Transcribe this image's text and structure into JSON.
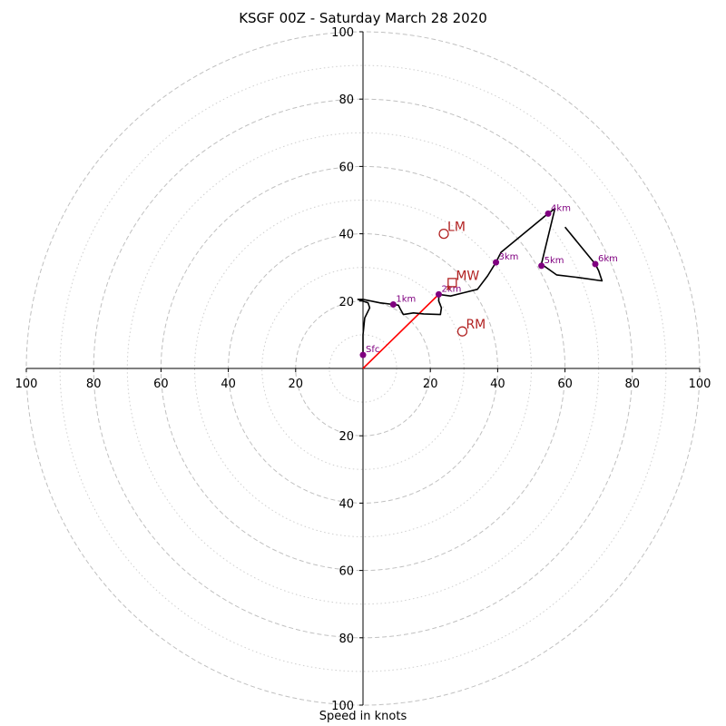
{
  "chart_data": {
    "type": "hodograph",
    "title": "KSGF 00Z - Saturday March 28 2020",
    "xlabel": "Speed in knots",
    "range": 100,
    "ring_major": [
      20,
      40,
      60,
      80,
      100
    ],
    "ring_minor": [
      10,
      30,
      50,
      70,
      90
    ],
    "tick_labels": [
      "20",
      "40",
      "60",
      "80",
      "100"
    ],
    "grid": true,
    "colors": {
      "trace": "#000000",
      "height_marker": "#800080",
      "storm": "#b22222",
      "shear_vector": "#ff0000",
      "grid": "#c0c0c0"
    },
    "trace": [
      [
        0,
        4
      ],
      [
        0,
        10
      ],
      [
        0.5,
        15
      ],
      [
        2,
        18
      ],
      [
        1.5,
        19.5
      ],
      [
        -1.5,
        20.5
      ],
      [
        0,
        20.5
      ],
      [
        5,
        19.5
      ],
      [
        9,
        19
      ],
      [
        10.5,
        18.8
      ],
      [
        11,
        17.8
      ],
      [
        12,
        16
      ],
      [
        15,
        16.5
      ],
      [
        18,
        16.2
      ],
      [
        23,
        16
      ],
      [
        23.3,
        18
      ],
      [
        22.5,
        20
      ],
      [
        22.5,
        22
      ],
      [
        26,
        21.5
      ],
      [
        30,
        22.5
      ],
      [
        34,
        23.5
      ],
      [
        37,
        27.5
      ],
      [
        39.5,
        31.5
      ],
      [
        41,
        34.5
      ],
      [
        55,
        46
      ],
      [
        57,
        47.5
      ],
      [
        53,
        31
      ],
      [
        57.5,
        27.8
      ],
      [
        64,
        27
      ],
      [
        71,
        26
      ],
      [
        70,
        29
      ],
      [
        69,
        31
      ],
      [
        60,
        42
      ]
    ],
    "height_markers": [
      {
        "label": "Sfc",
        "u": 0,
        "v": 4
      },
      {
        "label": "1km",
        "u": 9,
        "v": 19
      },
      {
        "label": "2km",
        "u": 22.5,
        "v": 22
      },
      {
        "label": "3km",
        "u": 39.5,
        "v": 31.5
      },
      {
        "label": "4km",
        "u": 55,
        "v": 46
      },
      {
        "label": "5km",
        "u": 53,
        "v": 30.5
      },
      {
        "label": "6km",
        "u": 69,
        "v": 31
      }
    ],
    "storm_motions": [
      {
        "label": "LM",
        "u": 24,
        "v": 40,
        "marker": "circle"
      },
      {
        "label": "MW",
        "u": 26.5,
        "v": 25.5,
        "marker": "square"
      },
      {
        "label": "RM",
        "u": 29.5,
        "v": 11,
        "marker": "circle"
      }
    ],
    "shear_vector": {
      "from": [
        0,
        0
      ],
      "to": [
        22.5,
        22
      ]
    }
  }
}
